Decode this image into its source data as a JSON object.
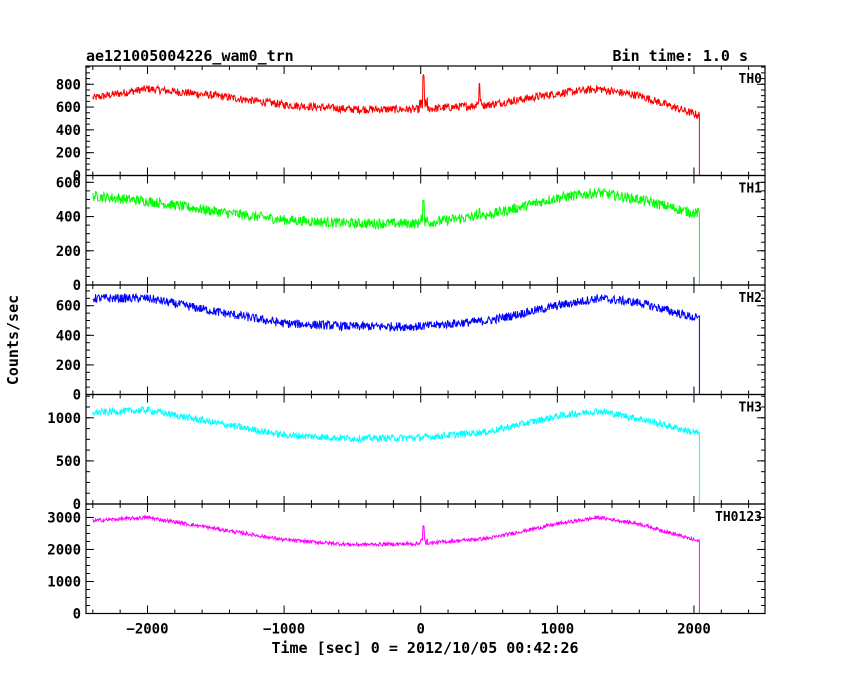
{
  "chart_data": {
    "type": "line",
    "title_left": "ae121005004226_wam0_trn",
    "title_right": "Bin time: 1.0 s",
    "xlabel": "Time [sec] 0 = 2012/10/05 00:42:26",
    "ylabel": "Counts/sec",
    "xlim": [
      -2450,
      2520
    ],
    "x_ticks": [
      -2000,
      -1000,
      0,
      1000,
      2000
    ],
    "x_tick_labels": [
      "−2000",
      "−1000",
      "0",
      "1000",
      "2000"
    ],
    "grid": false,
    "panels": [
      {
        "name": "TH0",
        "color": "#ff0000",
        "ylim": [
          0,
          960
        ],
        "y_ticks": [
          0,
          200,
          400,
          600,
          800
        ],
        "y_tick_labels": [
          "0",
          "200",
          "400",
          "600",
          "800"
        ],
        "noise": 35,
        "x": [
          -2400,
          -2000,
          -1500,
          -1000,
          -500,
          0,
          500,
          1000,
          1300,
          1600,
          2000,
          2040,
          2050,
          2400
        ],
        "values": [
          680,
          760,
          700,
          620,
          580,
          580,
          620,
          720,
          760,
          700,
          540,
          530,
          0,
          0
        ],
        "spikes": [
          [
            20,
            900
          ],
          [
            430,
            820
          ]
        ]
      },
      {
        "name": "TH1",
        "color": "#00ff00",
        "ylim": [
          0,
          640
        ],
        "y_ticks": [
          0,
          200,
          400,
          600
        ],
        "y_tick_labels": [
          "0",
          "200",
          "400",
          "600"
        ],
        "noise": 30,
        "x": [
          -2400,
          -2000,
          -1500,
          -1000,
          -500,
          0,
          500,
          1000,
          1300,
          1600,
          2000,
          2040,
          2050,
          2400
        ],
        "values": [
          520,
          490,
          430,
          380,
          360,
          360,
          410,
          510,
          540,
          500,
          420,
          420,
          0,
          0
        ],
        "spikes": [
          [
            20,
            500
          ],
          [
            430,
            470
          ]
        ]
      },
      {
        "name": "TH2",
        "color": "#0000ff",
        "ylim": [
          0,
          740
        ],
        "y_ticks": [
          0,
          200,
          400,
          600
        ],
        "y_tick_labels": [
          "0",
          "200",
          "400",
          "600"
        ],
        "noise": 30,
        "x": [
          -2400,
          -2000,
          -1500,
          -1000,
          -500,
          0,
          500,
          1000,
          1300,
          1600,
          2000,
          2040,
          2050,
          2400
        ],
        "values": [
          650,
          650,
          560,
          480,
          460,
          460,
          500,
          600,
          650,
          620,
          520,
          510,
          0,
          0
        ],
        "spikes": []
      },
      {
        "name": "TH3",
        "color": "#00ffff",
        "ylim": [
          0,
          1270
        ],
        "y_ticks": [
          0,
          500,
          1000
        ],
        "y_tick_labels": [
          "0",
          "500",
          "1000"
        ],
        "noise": 40,
        "x": [
          -2400,
          -2000,
          -1500,
          -1000,
          -500,
          0,
          500,
          1000,
          1300,
          1600,
          2000,
          2040,
          2050,
          2400
        ],
        "values": [
          1060,
          1090,
          940,
          800,
          760,
          770,
          840,
          1020,
          1080,
          990,
          830,
          820,
          0,
          0
        ],
        "spikes": []
      },
      {
        "name": "TH0123",
        "color": "#ff00ff",
        "ylim": [
          0,
          3420
        ],
        "y_ticks": [
          0,
          1000,
          2000,
          3000
        ],
        "y_tick_labels": [
          "0",
          "1000",
          "2000",
          "3000"
        ],
        "noise": 55,
        "x": [
          -2400,
          -2000,
          -1500,
          -1000,
          -500,
          0,
          500,
          1000,
          1300,
          1600,
          2000,
          2040,
          2050,
          2400
        ],
        "values": [
          2900,
          3000,
          2650,
          2300,
          2150,
          2180,
          2350,
          2800,
          3000,
          2800,
          2300,
          2250,
          0,
          0
        ],
        "spikes": [
          [
            20,
            2750
          ]
        ]
      }
    ]
  }
}
